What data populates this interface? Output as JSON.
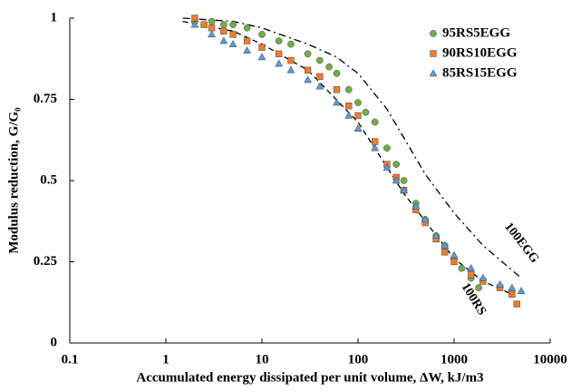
{
  "chart_data": {
    "type": "scatter",
    "xlabel": "Accumulated energy dissipated per unit volume, ΔW, kJ/m3",
    "ylabel": "Modulus reduction, G/G₀",
    "xscale": "log",
    "xlim": [
      0.1,
      10000
    ],
    "xticks": [
      0.1,
      1,
      10,
      100,
      1000,
      10000
    ],
    "ylim": [
      0,
      1
    ],
    "yticks": [
      0,
      0.25,
      0.5,
      0.75,
      1
    ],
    "legend": "top-right",
    "series": [
      {
        "name": "95RS5EGG",
        "color": "#70ad47",
        "marker": "circle",
        "x": [
          2,
          3,
          4,
          5,
          7,
          10,
          15,
          20,
          30,
          40,
          50,
          60,
          80,
          100,
          120,
          150,
          200,
          250,
          300,
          400,
          500,
          650,
          800,
          1000,
          1200,
          1500,
          1800
        ],
        "values": [
          0.99,
          0.99,
          0.98,
          0.98,
          0.97,
          0.95,
          0.93,
          0.92,
          0.89,
          0.87,
          0.85,
          0.83,
          0.78,
          0.74,
          0.71,
          0.68,
          0.6,
          0.55,
          0.5,
          0.43,
          0.38,
          0.33,
          0.3,
          0.26,
          0.23,
          0.2,
          0.17
        ]
      },
      {
        "name": "90RS10EGG",
        "color": "#ed7d31",
        "marker": "square",
        "x": [
          2,
          2.5,
          3,
          4,
          5,
          7,
          10,
          15,
          20,
          30,
          40,
          60,
          80,
          100,
          150,
          200,
          250,
          300,
          400,
          500,
          650,
          800,
          1000,
          1500,
          2000,
          3000,
          4000,
          4500
        ],
        "values": [
          1,
          0.98,
          0.97,
          0.96,
          0.95,
          0.93,
          0.91,
          0.89,
          0.87,
          0.84,
          0.82,
          0.78,
          0.73,
          0.7,
          0.62,
          0.55,
          0.51,
          0.47,
          0.41,
          0.37,
          0.32,
          0.28,
          0.25,
          0.21,
          0.19,
          0.17,
          0.15,
          0.12
        ]
      },
      {
        "name": "85RS15EGG",
        "color": "#5b9bd5",
        "marker": "triangle",
        "x": [
          2,
          3,
          4,
          5,
          7,
          10,
          15,
          20,
          30,
          40,
          60,
          80,
          100,
          150,
          200,
          250,
          300,
          400,
          500,
          650,
          800,
          1000,
          1500,
          2000,
          3000,
          4000,
          5000
        ],
        "values": [
          0.98,
          0.95,
          0.93,
          0.92,
          0.9,
          0.88,
          0.86,
          0.84,
          0.81,
          0.79,
          0.74,
          0.7,
          0.66,
          0.6,
          0.54,
          0.5,
          0.47,
          0.42,
          0.38,
          0.33,
          0.3,
          0.27,
          0.23,
          0.2,
          0.18,
          0.17,
          0.16
        ]
      }
    ],
    "curves": [
      {
        "name": "100EGG",
        "dash": "8 4 2 4",
        "x": [
          1.5,
          5,
          10,
          30,
          60,
          100,
          200,
          500,
          1000,
          2000,
          5000
        ],
        "values": [
          1,
          0.99,
          0.97,
          0.92,
          0.88,
          0.83,
          0.72,
          0.52,
          0.4,
          0.3,
          0.2
        ]
      },
      {
        "name": "100RS",
        "dash": "6 4",
        "x": [
          1.5,
          5,
          10,
          30,
          100,
          300,
          1000,
          2000,
          4000
        ],
        "values": [
          0.99,
          0.96,
          0.92,
          0.84,
          0.68,
          0.46,
          0.26,
          0.19,
          0.15
        ]
      }
    ]
  }
}
